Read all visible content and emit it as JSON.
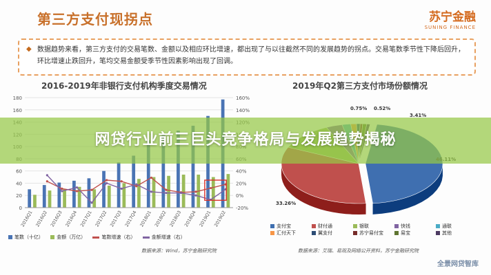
{
  "header": {
    "title": "第三方支付现拐点",
    "logo_cn": "苏宁金融",
    "logo_en": "SUNING FINANCE"
  },
  "summary_bullet": "◆",
  "summary_text": "数据趋势来看，第三方支付的交易笔数、金额以及相应环比增速，都出现了与以往截然不同的发展趋势的拐点。交易笔数季节性下降后回升，环比增速止跌回升，笔均交易金额受季节性因素影响出现了回调。",
  "banner": "网贷行业前三巨头竞争格局与发展趋势揭秘",
  "watermark": "全景网贷智库",
  "left_chart": {
    "subtitle": "2016-2019年非银行支付机构季度交易情况",
    "source": "数据来源：Wind，苏宁金融研究院",
    "legend": [
      "笔数（十亿）",
      "金额（万亿）",
      "笔数增速（右）",
      "金额增速（右）"
    ]
  },
  "right_chart": {
    "subtitle": "2019年Q2第三方支付市场份额情况",
    "source": "数据来源：艾瑞、易观及网络公开资料，苏宁金融研究院",
    "legend": [
      "支付宝",
      "财付通",
      "银联",
      "快钱",
      "通联",
      "汇付天下",
      "翼支付",
      "苏宁易付宝",
      "易宝",
      "其他"
    ]
  },
  "chart_data": [
    {
      "type": "bar",
      "categories": [
        "2016Q1",
        "2016Q2",
        "2016Q3",
        "2016Q4",
        "2017Q1",
        "2017Q2",
        "2017Q3",
        "2017Q4",
        "2018Q1",
        "2018Q2",
        "2018Q3",
        "2018Q4",
        "2019Q1",
        "2019Q2"
      ],
      "series": [
        {
          "name": "笔数（十亿）",
          "axis": "left",
          "color": "#4a74b4",
          "values": [
            30,
            37,
            41,
            44,
            48,
            60,
            74,
            85,
            110,
            120,
            126,
            134,
            150,
            177
          ]
        },
        {
          "name": "金额（万亿）",
          "axis": "left",
          "color": "#9bbb59",
          "values": [
            21,
            28,
            30,
            34,
            30,
            36,
            40,
            47,
            50,
            52,
            54,
            54,
            50,
            55
          ]
        },
        {
          "name": "笔数增速（右）",
          "axis": "right",
          "type": "line",
          "color": "#c0504d",
          "values": [
            null,
            23,
            11,
            7,
            9,
            25,
            23,
            15,
            29,
            9,
            5,
            6,
            12,
            18
          ]
        },
        {
          "name": "金额增速（右）",
          "axis": "right",
          "type": "line",
          "color": "#8064a2",
          "values": [
            null,
            33,
            7,
            13,
            -12,
            20,
            11,
            18,
            6,
            4,
            4,
            0,
            -7,
            10
          ]
        }
      ],
      "yticks_left": [
        "0",
        "20",
        "40",
        "60",
        "80",
        "100",
        "120",
        "140",
        "160",
        "180"
      ],
      "yticks_right": [
        "-20%",
        "0%",
        "20%",
        "40%",
        "60%",
        "80%",
        "100%",
        "120%",
        "140%",
        "160%"
      ],
      "ylim_left": [
        0,
        180
      ],
      "ylim_right": [
        -20,
        160
      ]
    },
    {
      "type": "pie",
      "labels": [
        "支付宝",
        "财付通",
        "银联",
        "快钱",
        "通联",
        "汇付天下",
        "翼支付",
        "苏宁易付宝",
        "易宝",
        "其他"
      ],
      "values": [
        46.11,
        33.26,
        11.4,
        3.41,
        1.8,
        1.2,
        0.75,
        0.52,
        0.85,
        0.7
      ],
      "label_texts": [
        "46.11%",
        "33.26%",
        "3.41%",
        "0.75%",
        "0.52%"
      ],
      "colors": [
        "#3f6fb0",
        "#c0504d",
        "#9bbb59",
        "#8064a2",
        "#4bacc6",
        "#f79646",
        "#2c4d75",
        "#772c2a",
        "#5f7530",
        "#4d3b62"
      ]
    }
  ]
}
